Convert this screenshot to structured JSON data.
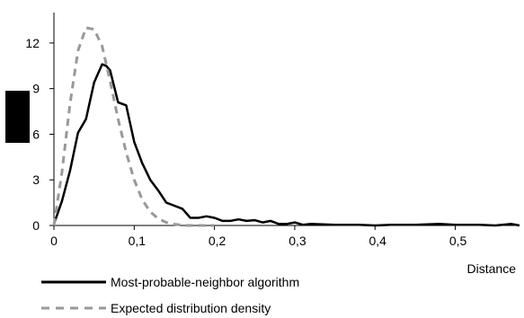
{
  "chart_data": {
    "type": "line",
    "title": "",
    "xlabel": "Distance",
    "ylabel": "",
    "xlim": [
      0,
      0.58
    ],
    "ylim": [
      0,
      14
    ],
    "x_ticks": [
      0,
      0.1,
      0.2,
      0.3,
      0.4,
      0.5
    ],
    "x_tick_labels": [
      "0",
      "0,1",
      "0,2",
      "0,3",
      "0,4",
      "0,5"
    ],
    "y_ticks": [
      0,
      3,
      6,
      9,
      12
    ],
    "y_tick_labels": [
      "0",
      "3",
      "6",
      "9",
      "12"
    ],
    "grid": false,
    "legend_position": "bottom-left",
    "colors": {
      "series1": "#000000",
      "series2": "#999999",
      "axes": "#000000",
      "ylabel_block": "#000000"
    },
    "series": [
      {
        "name": "Most-probable-neighbor algorithm",
        "style": "solid",
        "x": [
          0,
          0.01,
          0.02,
          0.03,
          0.04,
          0.05,
          0.06,
          0.065,
          0.07,
          0.08,
          0.09,
          0.1,
          0.11,
          0.12,
          0.13,
          0.14,
          0.15,
          0.16,
          0.17,
          0.18,
          0.19,
          0.2,
          0.21,
          0.22,
          0.23,
          0.24,
          0.25,
          0.26,
          0.27,
          0.28,
          0.29,
          0.3,
          0.31,
          0.32,
          0.35,
          0.38,
          0.4,
          0.42,
          0.45,
          0.48,
          0.5,
          0.53,
          0.55,
          0.57,
          0.58
        ],
        "y": [
          0.1,
          1.6,
          3.6,
          6.1,
          7.0,
          9.4,
          10.6,
          10.5,
          10.2,
          8.1,
          7.9,
          5.5,
          4.1,
          3.0,
          2.3,
          1.5,
          1.3,
          1.1,
          0.5,
          0.5,
          0.6,
          0.5,
          0.3,
          0.3,
          0.4,
          0.3,
          0.35,
          0.2,
          0.3,
          0.1,
          0.1,
          0.2,
          0.05,
          0.1,
          0.05,
          0.05,
          0.0,
          0.05,
          0.05,
          0.1,
          0.05,
          0.05,
          0.0,
          0.1,
          0.0
        ]
      },
      {
        "name": "Expected distribution density",
        "style": "dashed",
        "x": [
          0,
          0.01,
          0.02,
          0.03,
          0.04,
          0.05,
          0.06,
          0.07,
          0.08,
          0.09,
          0.1,
          0.11,
          0.12,
          0.13,
          0.14,
          0.15,
          0.16,
          0.17,
          0.18,
          0.19,
          0.2
        ],
        "y": [
          0,
          3.5,
          8.0,
          11.5,
          13.0,
          12.9,
          11.8,
          9.5,
          7.0,
          4.8,
          3.0,
          1.7,
          0.9,
          0.45,
          0.2,
          0.08,
          0.02,
          0.0,
          0.0,
          0.0,
          0.0
        ]
      }
    ]
  }
}
